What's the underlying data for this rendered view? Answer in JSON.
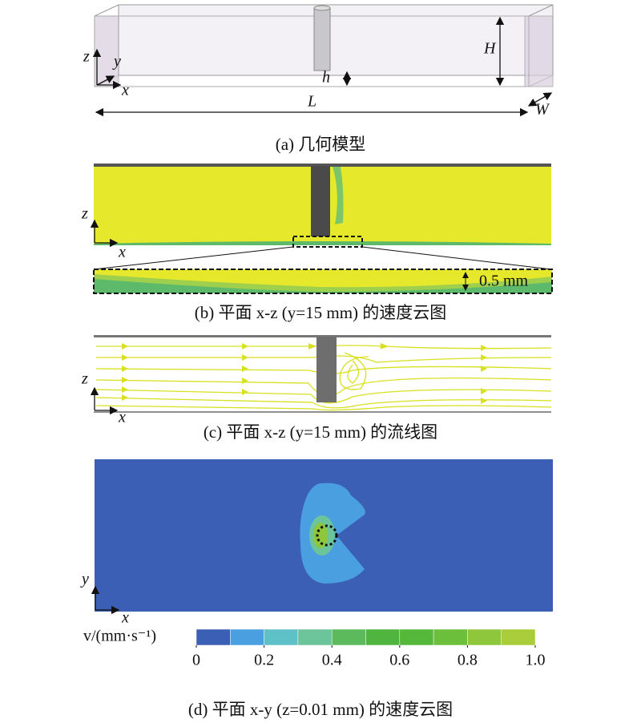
{
  "panel_a": {
    "axis_z": "z",
    "axis_y": "y",
    "axis_x": "x",
    "height_label": "H",
    "gap_label": "h",
    "length_label": "L",
    "width_label": "W",
    "caption": "(a) 几何模型"
  },
  "panel_b": {
    "axis_z": "z",
    "axis_x": "x",
    "zoom_label": "0.5 mm",
    "caption": "(b) 平面 x-z (y=15 mm) 的速度云图"
  },
  "panel_c": {
    "axis_z": "z",
    "axis_x": "x",
    "caption": "(c) 平面 x-z (y=15 mm) 的流线图"
  },
  "panel_d": {
    "axis_y": "y",
    "axis_x": "x",
    "caption": "(d) 平面 x-y (z=0.01 mm) 的速度云图",
    "colorbar": {
      "label": "v/(mm·s⁻¹)",
      "range": [
        0,
        1
      ],
      "ticks": [
        0,
        0.2,
        0.4,
        0.6,
        0.8,
        {
          "value": 1,
          "label": "1.0"
        }
      ],
      "colors": [
        "#3a5fb4",
        "#4a9fe0",
        "#5fc1c8",
        "#6cc49a",
        "#5cba5c",
        "#4fb53e",
        "#55b83a",
        "#6cbf3a",
        "#8ec63c",
        "#a8cc3a"
      ]
    }
  }
}
